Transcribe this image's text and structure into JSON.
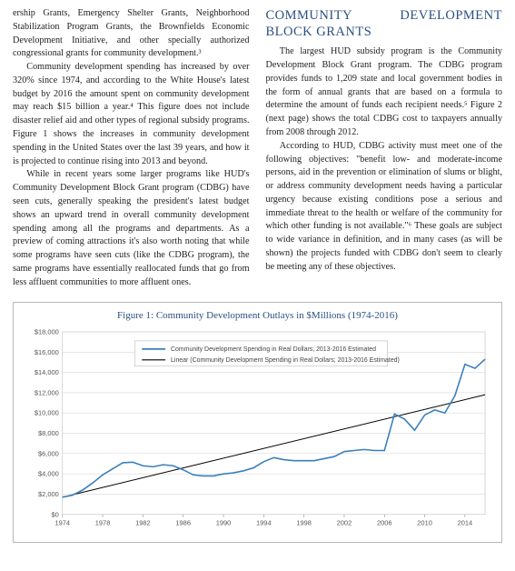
{
  "left_col": {
    "p1": "ership Grants, Emergency Shelter Grants, Neighborhood Stabilization Program Grants, the Brownfields Economic Development Initiative, and other specially authorized congressional grants for community development.³",
    "p2": "Community development spending has increased by over 320% since 1974, and according to the White House's latest budget by 2016 the amount spent on community development may reach $15 billion a year.⁴ This figure does not include disaster relief aid and other types of regional subsidy programs. Figure 1 shows the increases in community development spending in the United States over the last 39 years, and how it is projected to continue rising into 2013 and beyond.",
    "p3": "While in recent years some larger programs like HUD's Community Development Block Grant program (CDBG) have seen cuts, generally speaking the president's latest budget shows an upward trend in overall community development spending among all the programs and departments. As a preview of coming attractions it's also worth noting that while some programs have seen cuts (like the CDBG program), the same programs have essentially reallocated funds that go from less affluent communities to more affluent ones."
  },
  "right_col": {
    "heading": "COMMUNITY DEVELOPMENT BLOCK GRANTS",
    "p1": "The largest HUD subsidy program is the Community Development Block Grant program. The CDBG program provides funds to 1,209 state and local government bodies in the form of annual grants that are based on a formula to determine the amount of funds each recipient needs.⁵ Figure 2 (next page) shows the total CDBG cost to taxpayers annually from 2008 through 2012.",
    "p2": "According to HUD, CDBG activity must meet one of the following objectives: \"benefit low- and moderate-income persons, aid in the prevention or elimination of slums or blight, or address community development needs having a particular urgency because existing conditions pose a serious and immediate threat to the health or welfare of the community for which other funding is not available.\"⁶ These goals are subject to wide variance in definition, and in many cases (as will be shown) the projects funded with CDBG don't seem to clearly be meeting any of these objectives."
  },
  "figure": {
    "title": "Figure 1: Community Development Outlays in $Millions (1974-2016)",
    "legend": {
      "series1": "Community Development Spending in Real Dollars; 2013-2016 Estimated",
      "series2": "Linear (Community Development Spending in Real Dollars; 2013-2016 Estimated)"
    },
    "y_axis": {
      "min": 0,
      "max": 18000,
      "step": 2000,
      "labels": [
        "$0",
        "$2,000",
        "$4,000",
        "$6,000",
        "$8,000",
        "$10,000",
        "$12,000",
        "$14,000",
        "$16,000",
        "$18,000"
      ]
    },
    "x_axis": {
      "start": 1974,
      "end": 2016,
      "labels": [
        1974,
        1978,
        1982,
        1986,
        1990,
        1994,
        1998,
        2002,
        2006,
        2010,
        2014
      ]
    },
    "series_line": {
      "color": "#3a7fbd",
      "width": 1.6,
      "data": [
        [
          1974,
          1700
        ],
        [
          1975,
          1900
        ],
        [
          1976,
          2400
        ],
        [
          1977,
          3100
        ],
        [
          1978,
          3900
        ],
        [
          1979,
          4500
        ],
        [
          1980,
          5100
        ],
        [
          1981,
          5150
        ],
        [
          1982,
          4800
        ],
        [
          1983,
          4700
        ],
        [
          1984,
          4900
        ],
        [
          1985,
          4800
        ],
        [
          1986,
          4400
        ],
        [
          1987,
          3900
        ],
        [
          1988,
          3800
        ],
        [
          1989,
          3800
        ],
        [
          1990,
          4000
        ],
        [
          1991,
          4100
        ],
        [
          1992,
          4300
        ],
        [
          1993,
          4600
        ],
        [
          1994,
          5200
        ],
        [
          1995,
          5600
        ],
        [
          1996,
          5400
        ],
        [
          1997,
          5300
        ],
        [
          1998,
          5300
        ],
        [
          1999,
          5300
        ],
        [
          2000,
          5500
        ],
        [
          2001,
          5700
        ],
        [
          2002,
          6200
        ],
        [
          2003,
          6300
        ],
        [
          2004,
          6400
        ],
        [
          2005,
          6300
        ],
        [
          2006,
          6300
        ],
        [
          2007,
          9900
        ],
        [
          2008,
          9400
        ],
        [
          2009,
          8300
        ],
        [
          2010,
          9800
        ],
        [
          2011,
          10300
        ],
        [
          2012,
          10000
        ],
        [
          2013,
          11700
        ],
        [
          2014,
          14800
        ],
        [
          2015,
          14400
        ],
        [
          2016,
          15300
        ]
      ]
    },
    "series_trend": {
      "color": "#000000",
      "width": 1.0,
      "start": [
        1974,
        1700
      ],
      "end": [
        2016,
        11800
      ]
    },
    "grid_color": "#d8d8d8",
    "background_color": "#ffffff",
    "axis_font_size": 7.5,
    "legend_font_size": 7,
    "legend_border": "#b8b8b8"
  }
}
